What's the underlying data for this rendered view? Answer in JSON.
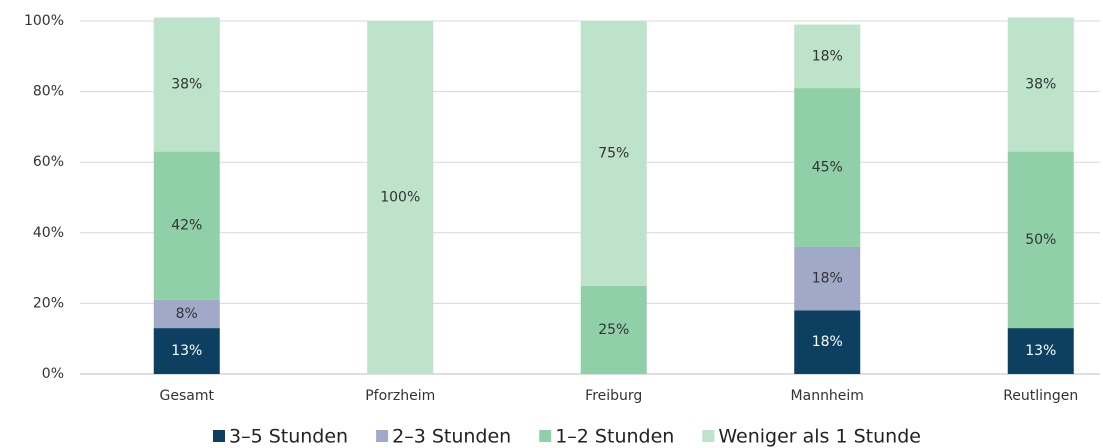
{
  "chart_data": {
    "type": "stacked-bar",
    "categories": [
      "Gesamt",
      "Pforzheim",
      "Freiburg",
      "Mannheim",
      "Reutlingen"
    ],
    "series": [
      {
        "name": "3–5 Stunden",
        "color": "#0d3f61",
        "values": [
          13,
          0,
          0,
          18,
          13
        ],
        "value_labels": [
          "13%",
          null,
          null,
          "18%",
          "13%"
        ]
      },
      {
        "name": "2–3 Stunden",
        "color": "#a1a9c9",
        "values": [
          8,
          0,
          0,
          18,
          0
        ],
        "value_labels": [
          "8%",
          null,
          null,
          "18%",
          null
        ]
      },
      {
        "name": "1–2 Stunden",
        "color": "#8fd0a8",
        "values": [
          42,
          0,
          25,
          45,
          50
        ],
        "value_labels": [
          "42%",
          null,
          "25%",
          "45%",
          "50%"
        ]
      },
      {
        "name": "Weniger als 1 Stunde",
        "color": "#bde3ca",
        "values": [
          38,
          100,
          75,
          18,
          38
        ],
        "value_labels": [
          "38%",
          "100%",
          "75%",
          "18%",
          "38%"
        ]
      }
    ],
    "ylim": [
      0,
      100
    ],
    "yticks": [
      {
        "value": 0,
        "label": "0%"
      },
      {
        "value": 20,
        "label": "20%"
      },
      {
        "value": 40,
        "label": "40%"
      },
      {
        "value": 60,
        "label": "60%"
      },
      {
        "value": 80,
        "label": "80%"
      },
      {
        "value": 100,
        "label": "100%"
      }
    ],
    "grid": true,
    "legend": "bottom"
  }
}
